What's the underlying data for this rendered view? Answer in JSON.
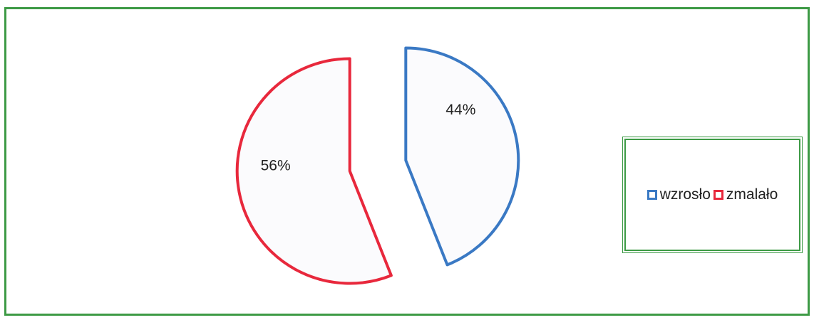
{
  "chart_data": {
    "type": "pie",
    "slices": [
      {
        "label": "wzrosło",
        "value": 44,
        "display": "44%",
        "color": "#3a79c4"
      },
      {
        "label": "zmalało",
        "value": 56,
        "display": "56%",
        "color": "#e8283c"
      }
    ],
    "legend_position": "right",
    "exploded": true
  },
  "legend": {
    "items": [
      {
        "label": "wzrosło",
        "color": "#3a79c4"
      },
      {
        "label": "zmalało",
        "color": "#e8283c"
      }
    ]
  },
  "colors": {
    "frame_border": "#3d9a45"
  }
}
